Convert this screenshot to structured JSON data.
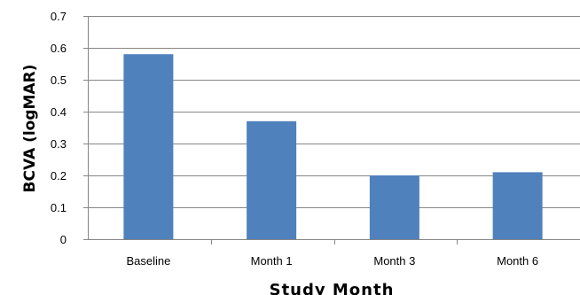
{
  "chart_data": {
    "type": "bar",
    "categories": [
      "Baseline",
      "Month 1",
      "Month 3",
      "Month 6"
    ],
    "values": [
      0.58,
      0.37,
      0.2,
      0.21
    ],
    "title": "",
    "xlabel": "Study Month",
    "ylabel": "BCVA (logMAR)",
    "ylim": [
      0,
      0.7
    ],
    "yticks": [
      "0",
      "0.1",
      "0.2",
      "0.3",
      "0.4",
      "0.5",
      "0.6",
      "0.7"
    ],
    "grid": true,
    "bar_color": "#4F81BD",
    "grid_color": "#868686",
    "axis_color": "#868686"
  }
}
